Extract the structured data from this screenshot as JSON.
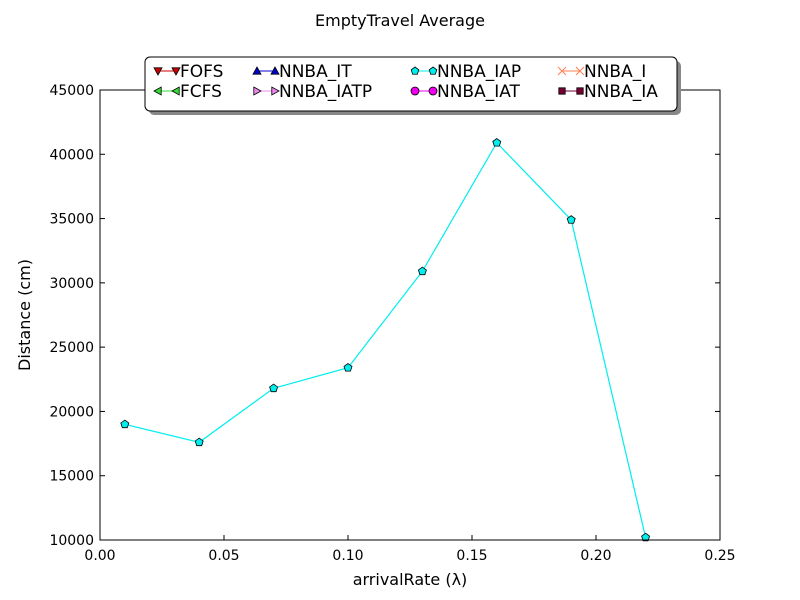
{
  "chart_data": {
    "type": "line",
    "title": "EmptyTravel Average",
    "xlabel": "arrivalRate (λ)",
    "ylabel": "Distance (cm)",
    "xlim": [
      0.0,
      0.25
    ],
    "ylim": [
      10000,
      45000
    ],
    "xticks": [
      0.0,
      0.05,
      0.1,
      0.15,
      0.2,
      0.25
    ],
    "xtick_labels": [
      "0.00",
      "0.05",
      "0.10",
      "0.15",
      "0.20",
      "0.25"
    ],
    "yticks": [
      10000,
      15000,
      20000,
      25000,
      30000,
      35000,
      40000,
      45000
    ],
    "ytick_labels": [
      "10000",
      "15000",
      "20000",
      "25000",
      "30000",
      "35000",
      "40000",
      "45000"
    ],
    "grid": false,
    "legend_position": "top-center",
    "legend": [
      {
        "name": "FOFS",
        "color": "#cc0000",
        "marker": "triangle-down"
      },
      {
        "name": "FCFS",
        "color": "#33dd33",
        "marker": "triangle-left"
      },
      {
        "name": "NNBA_IT",
        "color": "#0000cc",
        "marker": "triangle-up"
      },
      {
        "name": "NNBA_IATP",
        "color": "#ee88ee",
        "marker": "triangle-right"
      },
      {
        "name": "NNBA_IAP",
        "color": "#00eeee",
        "marker": "pentagon"
      },
      {
        "name": "NNBA_IAT",
        "color": "#ee00ee",
        "marker": "circle"
      },
      {
        "name": "NNBA_I",
        "color": "#ff7f50",
        "marker": "x"
      },
      {
        "name": "NNBA_IA",
        "color": "#770033",
        "marker": "square"
      }
    ],
    "series": [
      {
        "name": "NNBA_IAP",
        "color": "#00eeee",
        "x": [
          0.01,
          0.04,
          0.07,
          0.1,
          0.13,
          0.16,
          0.19,
          0.22
        ],
        "values": [
          19000,
          17600,
          21800,
          23400,
          30900,
          40900,
          34900,
          10200
        ]
      }
    ]
  }
}
